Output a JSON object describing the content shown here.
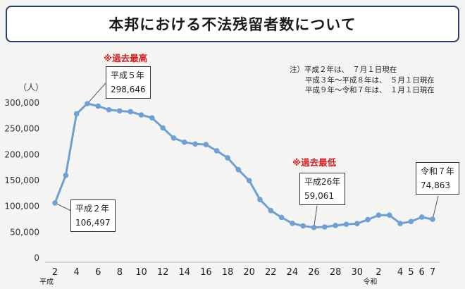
{
  "title": "本邦における不法残留者数について",
  "notes": {
    "prefix": "注）",
    "lines": [
      "平成２年は、　７月１日現在",
      "平成３年～平成８年は、　５月１日現在",
      "平成９年～令和７年は、　１月１日現在"
    ]
  },
  "annotations": {
    "peak_label": "※過去最高",
    "peak_box": [
      "平成５年",
      "298,646"
    ],
    "low_label": "※過去最低",
    "low_box": [
      "平成26年",
      "59,061"
    ],
    "start_box": [
      "平成２年",
      "106,497"
    ],
    "end_box": [
      "令和７年",
      "74,863"
    ]
  },
  "colors": {
    "line": "#6fa0d4",
    "accent_red": "#d42020",
    "title_border": "#2c3e63"
  },
  "chart_data": {
    "type": "line",
    "ylabel": "（人）",
    "ylim": [
      0,
      300000
    ],
    "yticks": [
      "0",
      "50,000",
      "100,000",
      "150,000",
      "200,000",
      "250,000",
      "300,000"
    ],
    "ytick_values": [
      0,
      50000,
      100000,
      150000,
      200000,
      250000,
      300000
    ],
    "xticks": [
      "2",
      "4",
      "6",
      "8",
      "10",
      "12",
      "14",
      "16",
      "18",
      "20",
      "22",
      "24",
      "26",
      "28",
      "30",
      "2",
      "4",
      "5",
      "6",
      "7"
    ],
    "era_labels": [
      "平成",
      "令和"
    ],
    "categories": [
      "H2",
      "H3",
      "H4",
      "H5",
      "H6",
      "H7",
      "H8",
      "H9",
      "H10",
      "H11",
      "H12",
      "H13",
      "H14",
      "H15",
      "H16",
      "H17",
      "H18",
      "H19",
      "H20",
      "H21",
      "H22",
      "H23",
      "H24",
      "H25",
      "H26",
      "H27",
      "H28",
      "H29",
      "H30",
      "H31",
      "R2",
      "R3",
      "R4",
      "R5",
      "R6",
      "R7"
    ],
    "values": [
      106497,
      159828,
      278892,
      298646,
      293800,
      286704,
      284500,
      282986,
      276810,
      271048,
      251697,
      232121,
      224067,
      220552,
      219418,
      207299,
      193745,
      170839,
      149785,
      113072,
      91778,
      78488,
      67065,
      62009,
      59061,
      60007,
      62818,
      65270,
      66498,
      74167,
      82892,
      82868,
      66759,
      70491,
      79113,
      74863
    ]
  }
}
